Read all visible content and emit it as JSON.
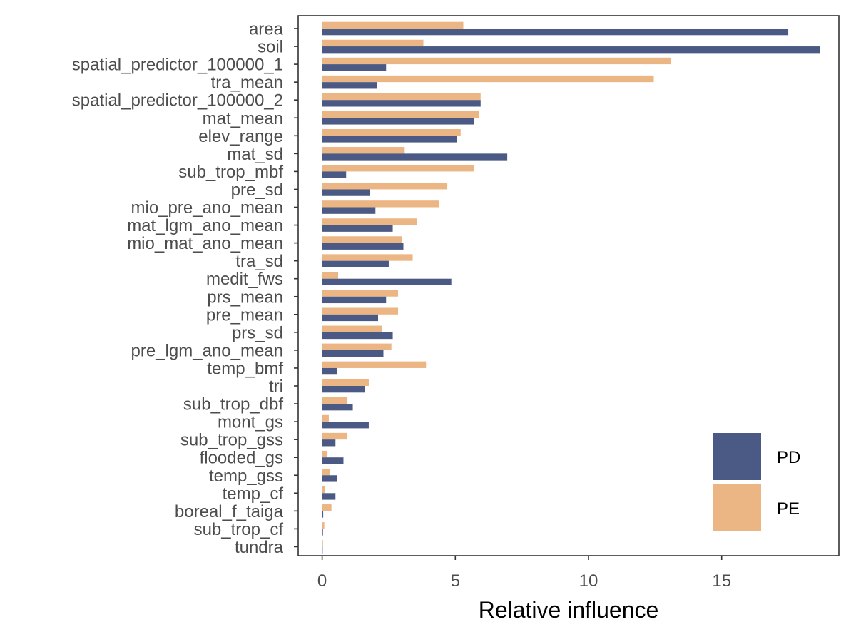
{
  "chart_data": {
    "type": "bar",
    "orientation": "horizontal",
    "xlabel": "Relative influence",
    "ylabel": "",
    "title": "",
    "xlim": [
      -0.9,
      19.4
    ],
    "xticks": [
      0,
      5,
      10,
      15
    ],
    "grid": false,
    "legend_position": "bottom-right",
    "categories": [
      "area",
      "soil",
      "spatial_predictor_100000_1",
      "tra_mean",
      "spatial_predictor_100000_2",
      "mat_mean",
      "elev_range",
      "mat_sd",
      "sub_trop_mbf",
      "pre_sd",
      "mio_pre_ano_mean",
      "mat_lgm_ano_mean",
      "mio_mat_ano_mean",
      "tra_sd",
      "medit_fws",
      "prs_mean",
      "pre_mean",
      "prs_sd",
      "pre_lgm_ano_mean",
      "temp_bmf",
      "tri",
      "sub_trop_dbf",
      "mont_gs",
      "sub_trop_gss",
      "flooded_gs",
      "temp_gss",
      "temp_cf",
      "boreal_f_taiga",
      "sub_trop_cf",
      "tundra"
    ],
    "series": [
      {
        "name": "PE",
        "color": "#EBB584",
        "values": [
          5.3,
          3.8,
          13.1,
          12.45,
          5.95,
          5.9,
          5.2,
          3.1,
          5.7,
          4.7,
          4.4,
          3.55,
          3.0,
          3.4,
          0.6,
          2.85,
          2.85,
          2.25,
          2.6,
          3.9,
          1.75,
          0.95,
          0.25,
          0.95,
          0.2,
          0.3,
          0.1,
          0.35,
          0.08,
          0.03
        ]
      },
      {
        "name": "PD",
        "color": "#4B5A84",
        "values": [
          17.5,
          18.7,
          2.4,
          2.05,
          5.95,
          5.7,
          5.05,
          6.95,
          0.9,
          1.8,
          2.0,
          2.65,
          3.05,
          2.5,
          4.85,
          2.4,
          2.1,
          2.65,
          2.3,
          0.55,
          1.6,
          1.15,
          1.75,
          0.5,
          0.8,
          0.55,
          0.5,
          0.04,
          0.03,
          0.02
        ]
      }
    ],
    "legend": [
      {
        "name": "PD",
        "color": "#4B5A84"
      },
      {
        "name": "PE",
        "color": "#EBB584"
      }
    ]
  }
}
